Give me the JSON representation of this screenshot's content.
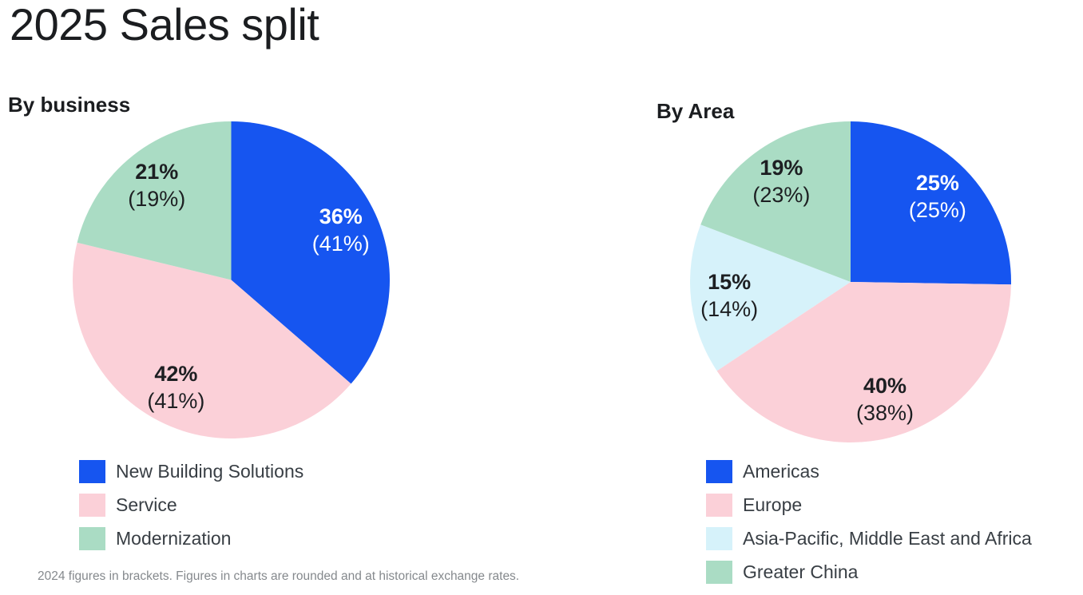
{
  "page": {
    "title": "2025 Sales split",
    "footnote": "2024 figures in brackets. Figures in charts are rounded and at historical exchange rates."
  },
  "palette": {
    "blue": "#1655F0",
    "pink": "#FBD0D8",
    "green": "#AADCC4",
    "light_blue": "#D6F2FA",
    "text_dark": "#1d1f22",
    "text_light": "#ffffff"
  },
  "chart_data": [
    {
      "type": "pie",
      "title": "By business",
      "start_angle_deg": 0,
      "direction": "clockwise",
      "legend_position": "bottom",
      "slices": [
        {
          "label": "New Building Solutions",
          "value": 36,
          "bracket_value": 41,
          "display": "36%",
          "bracket_display": "(41%)",
          "color": "#1655F0",
          "label_color": "#ffffff"
        },
        {
          "label": "Service",
          "value": 42,
          "bracket_value": 41,
          "display": "42%",
          "bracket_display": "(41%)",
          "color": "#FBD0D8",
          "label_color": "#1d1f22"
        },
        {
          "label": "Modernization",
          "value": 21,
          "bracket_value": 19,
          "display": "21%",
          "bracket_display": "(19%)",
          "color": "#AADCC4",
          "label_color": "#1d1f22"
        }
      ]
    },
    {
      "type": "pie",
      "title": "By Area",
      "start_angle_deg": 0,
      "direction": "clockwise",
      "legend_position": "bottom",
      "slices": [
        {
          "label": "Americas",
          "value": 25,
          "bracket_value": 25,
          "display": "25%",
          "bracket_display": "(25%)",
          "color": "#1655F0",
          "label_color": "#ffffff"
        },
        {
          "label": "Europe",
          "value": 40,
          "bracket_value": 38,
          "display": "40%",
          "bracket_display": "(38%)",
          "color": "#FBD0D8",
          "label_color": "#1d1f22"
        },
        {
          "label": "Asia-Pacific, Middle East and Africa",
          "value": 15,
          "bracket_value": 14,
          "display": "15%",
          "bracket_display": "(14%)",
          "color": "#D6F2FA",
          "label_color": "#1d1f22"
        },
        {
          "label": "Greater China",
          "value": 19,
          "bracket_value": 23,
          "display": "19%",
          "bracket_display": "(23%)",
          "color": "#AADCC4",
          "label_color": "#1d1f22"
        }
      ]
    }
  ]
}
